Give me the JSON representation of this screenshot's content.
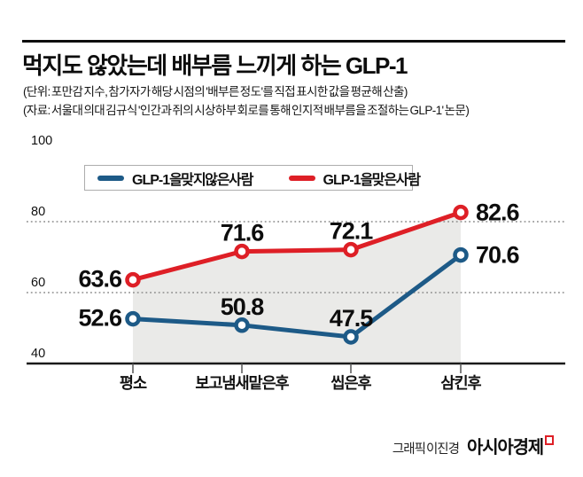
{
  "header": {
    "title": "먹지도 않았는데 배부름 느끼게 하는 GLP-1",
    "subtitle_unit": "(단위: 포만감 지수, 참가자가 해당 시점의 '배부른 정도'를 직접 표시한 값을 평균해 산출)",
    "subtitle_source": "(자료: 서울대 의대 김규식 '인간과 쥐의 시상하부 회로를 통해 인지적 배부름을 조절하는 GLP-1' 논문)"
  },
  "chart_data": {
    "type": "line",
    "categories": [
      "평소",
      "보고 냄새 맡은 후",
      "씹은 후",
      "삼킨 후"
    ],
    "series": [
      {
        "name": "GLP-1을 맞지 않은 사람",
        "color": "#1d5a87",
        "values": [
          52.6,
          50.8,
          47.5,
          70.6
        ]
      },
      {
        "name": "GLP-1을 맞은 사람",
        "color": "#de1f26",
        "values": [
          63.6,
          71.6,
          72.1,
          82.6
        ],
        "area_fill": "#eaeae8"
      }
    ],
    "yticks": [
      40,
      60,
      80,
      100
    ],
    "ylim": [
      40,
      100
    ],
    "gridlines_dotted": [
      60,
      80
    ],
    "legend_position": "top-inside",
    "grid": "horizontal-dotted"
  },
  "footer": {
    "credit": "그래픽 이진경",
    "brand": "아시아경제"
  },
  "colors": {
    "series_no_glp1": "#1d5a87",
    "series_glp1": "#de1f26",
    "area_fill": "#eaeae8",
    "gridline": "#8c8c8c",
    "axis": "#1a1a1a"
  }
}
